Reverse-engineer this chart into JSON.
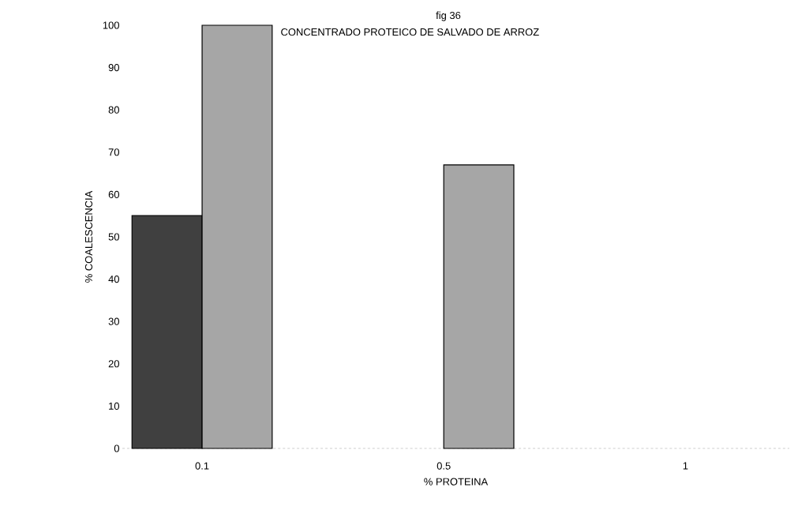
{
  "chart_data": {
    "type": "bar",
    "title": "fig  36",
    "subtitle": "CONCENTRADO PROTEICO DE SALVADO DE ARROZ",
    "xlabel": "% PROTEINA",
    "ylabel": "%  COALESCENCIA",
    "categories": [
      "0.1",
      "0.5",
      "1"
    ],
    "series": [
      {
        "color": "#404040",
        "values": [
          55,
          0,
          0
        ]
      },
      {
        "color": "#a6a6a6",
        "values": [
          100,
          67,
          0
        ]
      }
    ],
    "ylim": [
      0,
      100
    ],
    "yticks": [
      0,
      10,
      20,
      30,
      40,
      50,
      60,
      70,
      80,
      90,
      100
    ],
    "grid": false
  }
}
